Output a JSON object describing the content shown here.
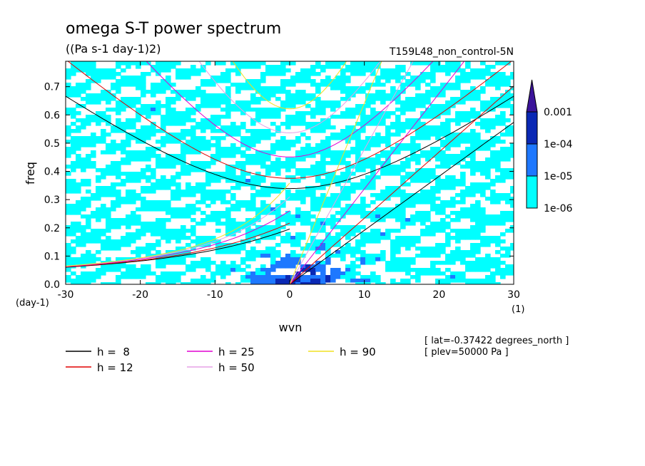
{
  "chart_data": {
    "type": "heatmap",
    "title": "omega S-T power spectrum",
    "units": "((Pa s-1 day-1)2)",
    "experiment": "T159L48_non_control-5N",
    "xlabel": "wvn",
    "ylabel": "freq",
    "x_unit": "(1)",
    "y_unit": "(day-1)",
    "xlim": [
      -30,
      30
    ],
    "ylim": [
      0,
      0.79
    ],
    "x_ticks": [
      "-30",
      "-20",
      "-10",
      "0",
      "10",
      "20",
      "30"
    ],
    "x_tick_values": [
      -30,
      -20,
      -10,
      0,
      10,
      20,
      30
    ],
    "y_ticks": [
      "0.0",
      "0.1",
      "0.2",
      "0.3",
      "0.4",
      "0.5",
      "0.6",
      "0.7"
    ],
    "y_tick_values": [
      0,
      0.1,
      0.2,
      0.3,
      0.4,
      0.5,
      0.6,
      0.7
    ],
    "colorbar": {
      "levels": [
        "1e-06",
        "1e-05",
        "1e-04",
        "0.001"
      ],
      "colors": [
        "#00ffff",
        "#1e78ff",
        "#0a28b4",
        "#3c149a"
      ]
    },
    "dispersion_curves": [
      {
        "label": "h =  8",
        "h": 8,
        "color": "#000000"
      },
      {
        "label": "h = 12",
        "h": 12,
        "color": "#e00000"
      },
      {
        "label": "h = 25",
        "h": 25,
        "color": "#e000d0"
      },
      {
        "label": "h = 50",
        "h": 50,
        "color": "#e6a0e6"
      },
      {
        "label": "h = 90",
        "h": 90,
        "color": "#f0e020"
      }
    ],
    "annotations": [
      "[ lat=-0.37422 degrees_north ]",
      "[ plev=50000 Pa ]"
    ]
  }
}
